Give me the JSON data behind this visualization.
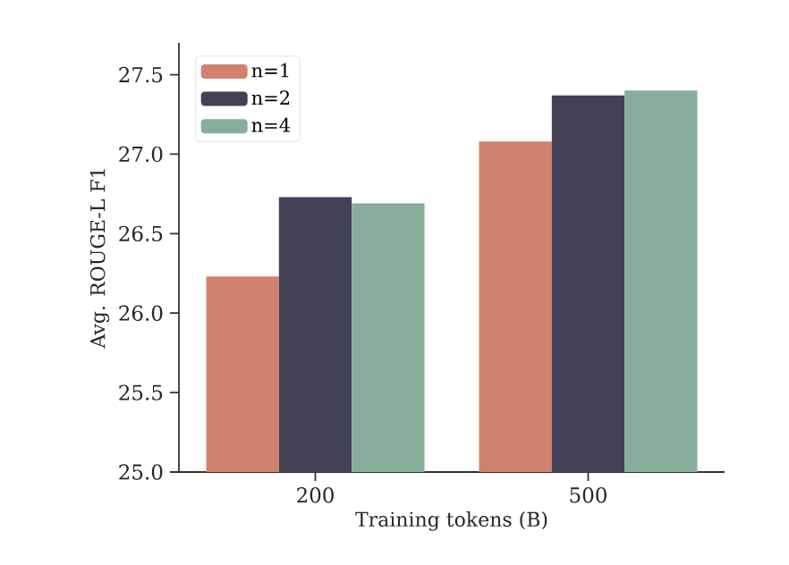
{
  "chart_data": {
    "type": "bar",
    "xlabel": "Training tokens (B)",
    "ylabel": "Avg. ROUGE-L F1",
    "categories": [
      "200",
      "500"
    ],
    "series": [
      {
        "name": "n=1",
        "color": "#d0826f",
        "values": [
          26.23,
          27.08
        ]
      },
      {
        "name": "n=2",
        "color": "#424155",
        "values": [
          26.73,
          27.37
        ]
      },
      {
        "name": "n=4",
        "color": "#87ae9a",
        "values": [
          26.69,
          27.4
        ]
      }
    ],
    "ylim": [
      25.0,
      27.7
    ],
    "yticks": [
      {
        "value": 25.0,
        "label": "25.0"
      },
      {
        "value": 25.5,
        "label": "25.5"
      },
      {
        "value": 26.0,
        "label": "26.0"
      },
      {
        "value": 26.5,
        "label": "26.5"
      },
      {
        "value": 27.0,
        "label": "27.0"
      },
      {
        "value": 27.5,
        "label": "27.5"
      }
    ],
    "grid": false,
    "legend": "top left"
  }
}
